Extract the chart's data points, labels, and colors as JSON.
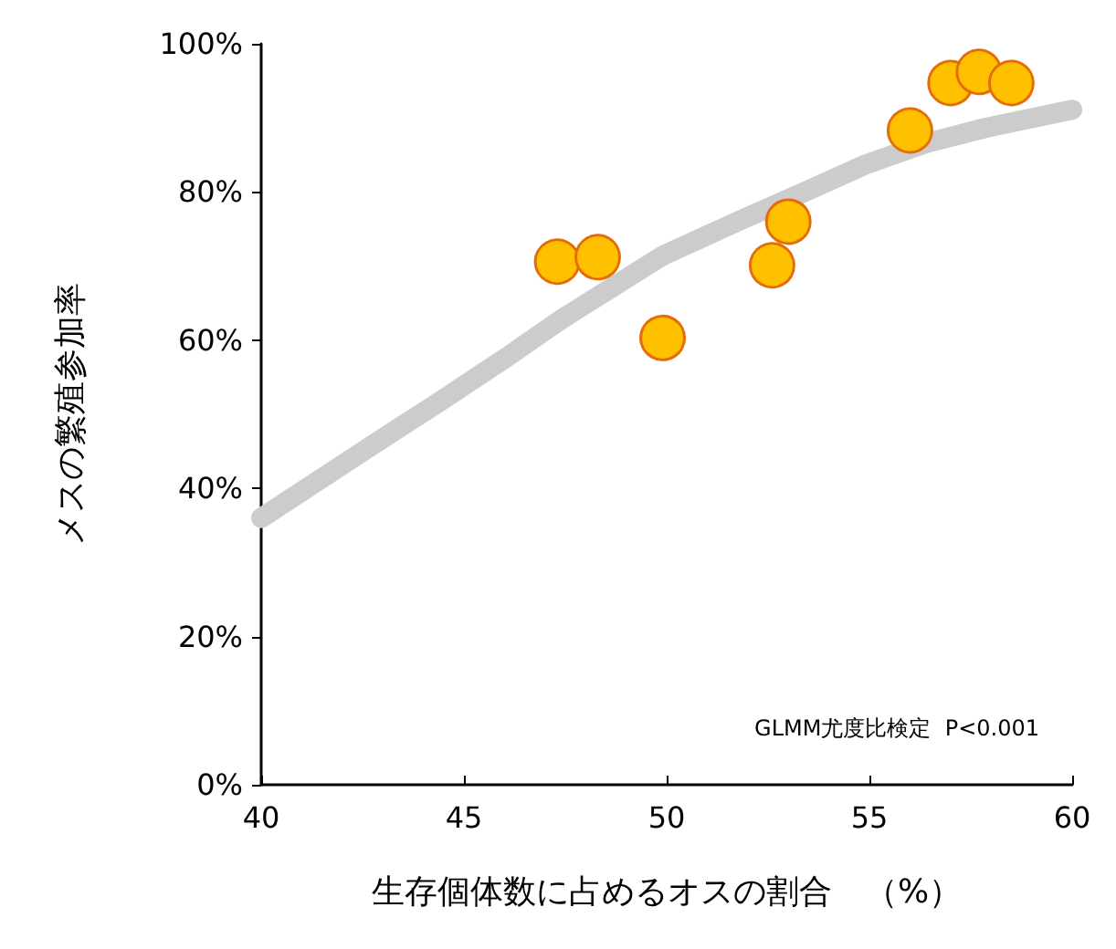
{
  "chart_data": {
    "type": "scatter",
    "xlabel": "生存個体数に占めるオスの割合　（%）",
    "ylabel": "メスの繁殖参加率",
    "annotations": [
      "GLMM尤度比検定  P<0.001"
    ],
    "grid": false,
    "xlim": [
      40,
      60
    ],
    "xticks": [
      40,
      45,
      50,
      55,
      60
    ],
    "ylim": [
      0,
      100
    ],
    "yticks": [
      {
        "value": 0,
        "label": "0%"
      },
      {
        "value": 20,
        "label": "20%"
      },
      {
        "value": 40,
        "label": "40%"
      },
      {
        "value": 60,
        "label": "60%"
      },
      {
        "value": 80,
        "label": "80%"
      },
      {
        "value": 100,
        "label": "100%"
      }
    ],
    "series": [
      {
        "type": "line",
        "color": "#cccccc",
        "marker": "none",
        "x": [
          40,
          42.9,
          44.4,
          46,
          47.4,
          49.9,
          51.9,
          53.4,
          54.9,
          56.4,
          57.9,
          60
        ],
        "values": [
          36,
          46.4,
          51.7,
          57.5,
          62.8,
          71.4,
          76.4,
          80,
          83.7,
          86.6,
          88.7,
          91.1
        ]
      },
      {
        "color": "#ffc000",
        "marker": "circle",
        "x": [
          47.3,
          48.3,
          49.9,
          52.6,
          53,
          56,
          57,
          57.7,
          58.5
        ],
        "values": [
          70.6,
          71.2,
          60.3,
          70.1,
          76,
          88.3,
          94.7,
          96.2,
          94.7
        ]
      }
    ]
  }
}
